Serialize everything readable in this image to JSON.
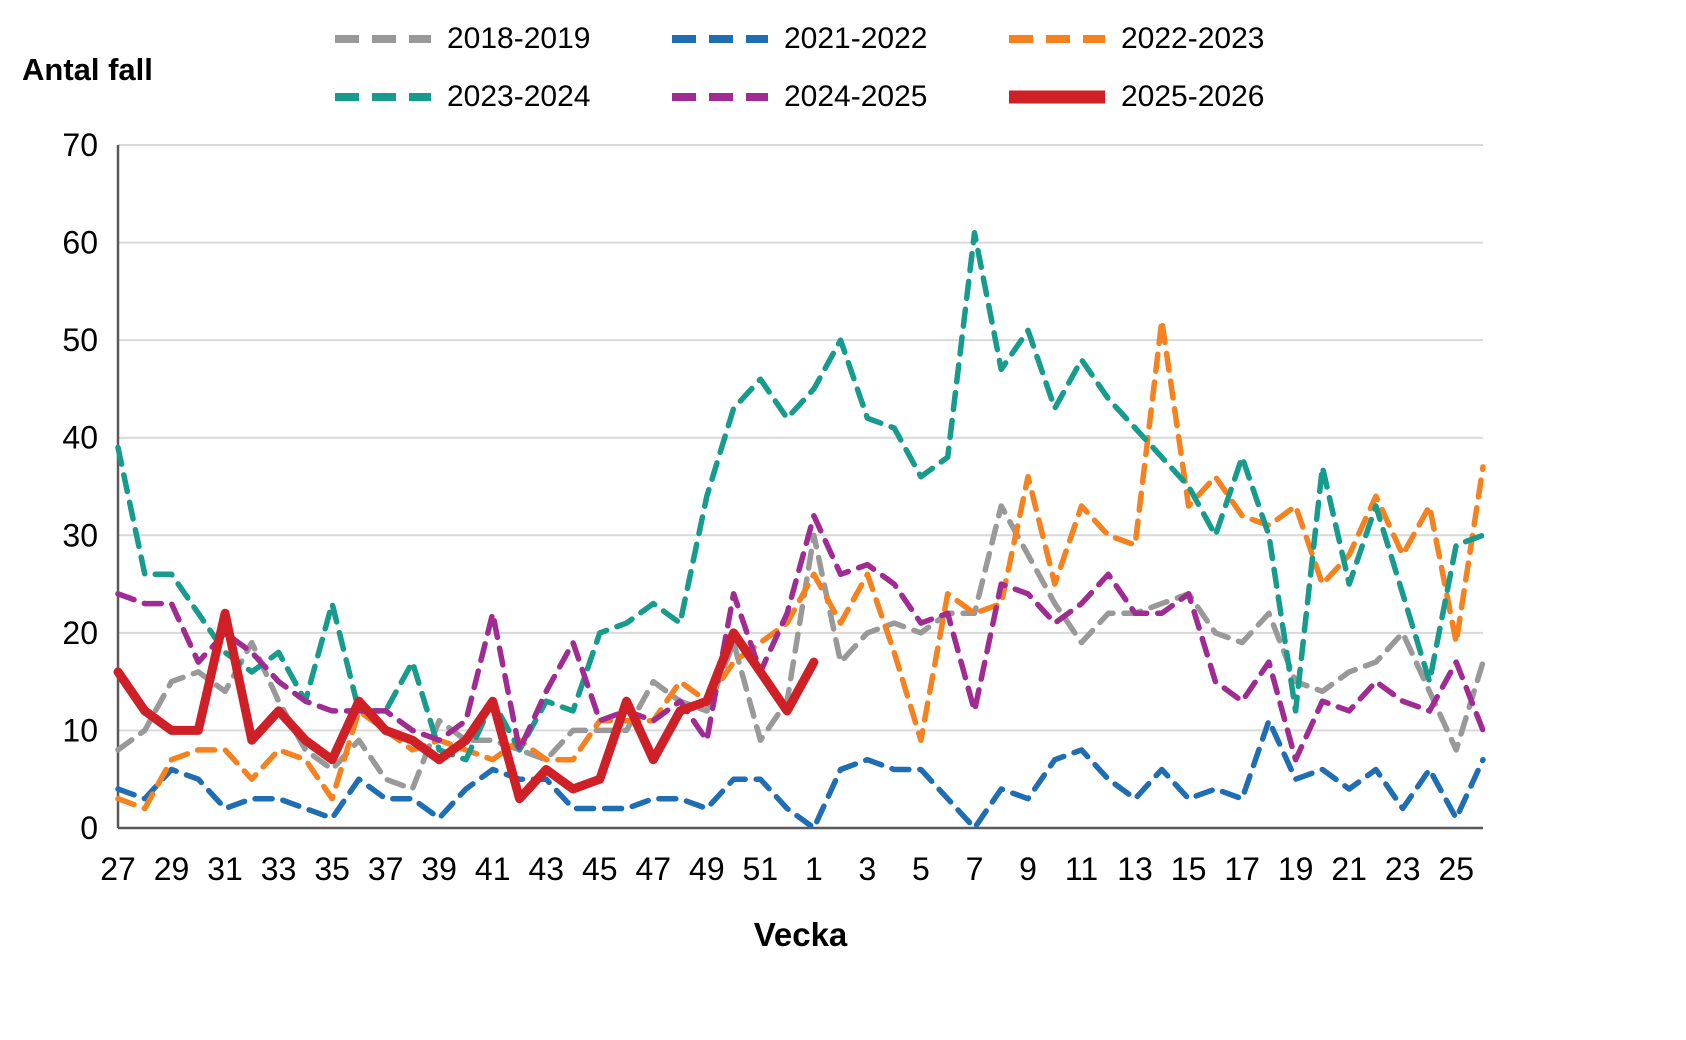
{
  "page": {
    "y_axis_title": "Antal fall",
    "x_axis_title": "Vecka"
  },
  "chart_data": {
    "type": "line",
    "title": "",
    "xlabel": "Vecka",
    "ylabel": "Antal fall",
    "grid": "horizontal",
    "legend_position": "top",
    "ylim": [
      0,
      70
    ],
    "y_ticks": [
      0,
      10,
      20,
      30,
      40,
      50,
      60,
      70
    ],
    "x_label_every": 2,
    "x": [
      "27",
      "28",
      "29",
      "30",
      "31",
      "32",
      "33",
      "34",
      "35",
      "36",
      "37",
      "38",
      "39",
      "40",
      "41",
      "42",
      "43",
      "44",
      "45",
      "46",
      "47",
      "48",
      "49",
      "50",
      "51",
      "52",
      "1",
      "2",
      "3",
      "4",
      "5",
      "6",
      "7",
      "8",
      "9",
      "10",
      "11",
      "12",
      "13",
      "14",
      "15",
      "16",
      "17",
      "18",
      "19",
      "20",
      "21",
      "22",
      "23",
      "24",
      "25",
      "26"
    ],
    "series": [
      {
        "name": "2018-2019",
        "color": "#999999",
        "style": "dashed",
        "values": [
          8,
          10,
          15,
          16,
          14,
          19,
          13,
          8,
          6,
          9,
          5,
          4,
          11,
          9,
          9,
          8,
          7,
          10,
          10,
          10,
          15,
          13,
          12,
          19,
          9,
          13,
          30,
          17,
          20,
          21,
          20,
          22,
          22,
          33,
          28,
          23,
          19,
          22,
          22,
          23,
          24,
          20,
          19,
          22,
          15,
          14,
          16,
          17,
          20,
          14,
          8,
          17
        ]
      },
      {
        "name": "2021-2022",
        "color": "#1f6eb4",
        "style": "dashed",
        "values": [
          4,
          3,
          6,
          5,
          2,
          3,
          3,
          2,
          1,
          5,
          3,
          3,
          1,
          4,
          6,
          5,
          5,
          2,
          2,
          2,
          3,
          3,
          2,
          5,
          5,
          2,
          0,
          6,
          7,
          6,
          6,
          3,
          0,
          4,
          3,
          7,
          8,
          5,
          3,
          6,
          3,
          4,
          3,
          11,
          5,
          6,
          4,
          6,
          2,
          6,
          1,
          7
        ]
      },
      {
        "name": "2022-2023",
        "color": "#f5821e",
        "style": "dashed",
        "values": [
          3,
          2,
          7,
          8,
          8,
          5,
          8,
          7,
          3,
          12,
          10,
          8,
          9,
          8,
          7,
          9,
          7,
          7,
          11,
          11,
          11,
          15,
          13,
          17,
          19,
          21,
          26,
          21,
          26,
          18,
          9,
          24,
          22,
          23,
          36,
          25,
          33,
          30,
          29,
          52,
          33,
          36,
          32,
          31,
          33,
          25,
          28,
          34,
          28,
          33,
          19,
          37
        ]
      },
      {
        "name": "2023-2024",
        "color": "#169b8d",
        "style": "dashed",
        "values": [
          39,
          26,
          26,
          22,
          18,
          16,
          18,
          13,
          23,
          12,
          12,
          17,
          8,
          7,
          13,
          8,
          13,
          12,
          20,
          21,
          23,
          21,
          34,
          43,
          46,
          42,
          45,
          50,
          42,
          41,
          36,
          38,
          61,
          47,
          51,
          43,
          48,
          44,
          41,
          38,
          35,
          30,
          38,
          30,
          12,
          37,
          25,
          33,
          24,
          15,
          29,
          30
        ]
      },
      {
        "name": "2024-2025",
        "color": "#a02b93",
        "style": "dashed",
        "values": [
          24,
          23,
          23,
          17,
          20,
          18,
          15,
          13,
          12,
          12,
          12,
          10,
          9,
          11,
          22,
          8,
          14,
          19,
          11,
          12,
          11,
          13,
          9,
          24,
          16,
          22,
          32,
          26,
          27,
          25,
          21,
          22,
          12,
          25,
          24,
          21,
          23,
          26,
          22,
          22,
          24,
          15,
          13,
          17,
          7,
          13,
          12,
          15,
          13,
          12,
          17,
          10
        ]
      },
      {
        "name": "2025-2026",
        "color": "#cf2027",
        "style": "solid",
        "values": [
          16,
          12,
          10,
          10,
          22,
          9,
          12,
          9,
          7,
          13,
          10,
          9,
          7,
          9,
          13,
          3,
          6,
          4,
          5,
          13,
          7,
          12,
          13,
          20,
          16,
          12,
          17,
          null,
          null,
          null,
          null,
          null,
          null,
          null,
          null,
          null,
          null,
          null,
          null,
          null,
          null,
          null,
          null,
          null,
          null,
          null,
          null,
          null,
          null,
          null,
          null,
          null
        ]
      }
    ]
  }
}
